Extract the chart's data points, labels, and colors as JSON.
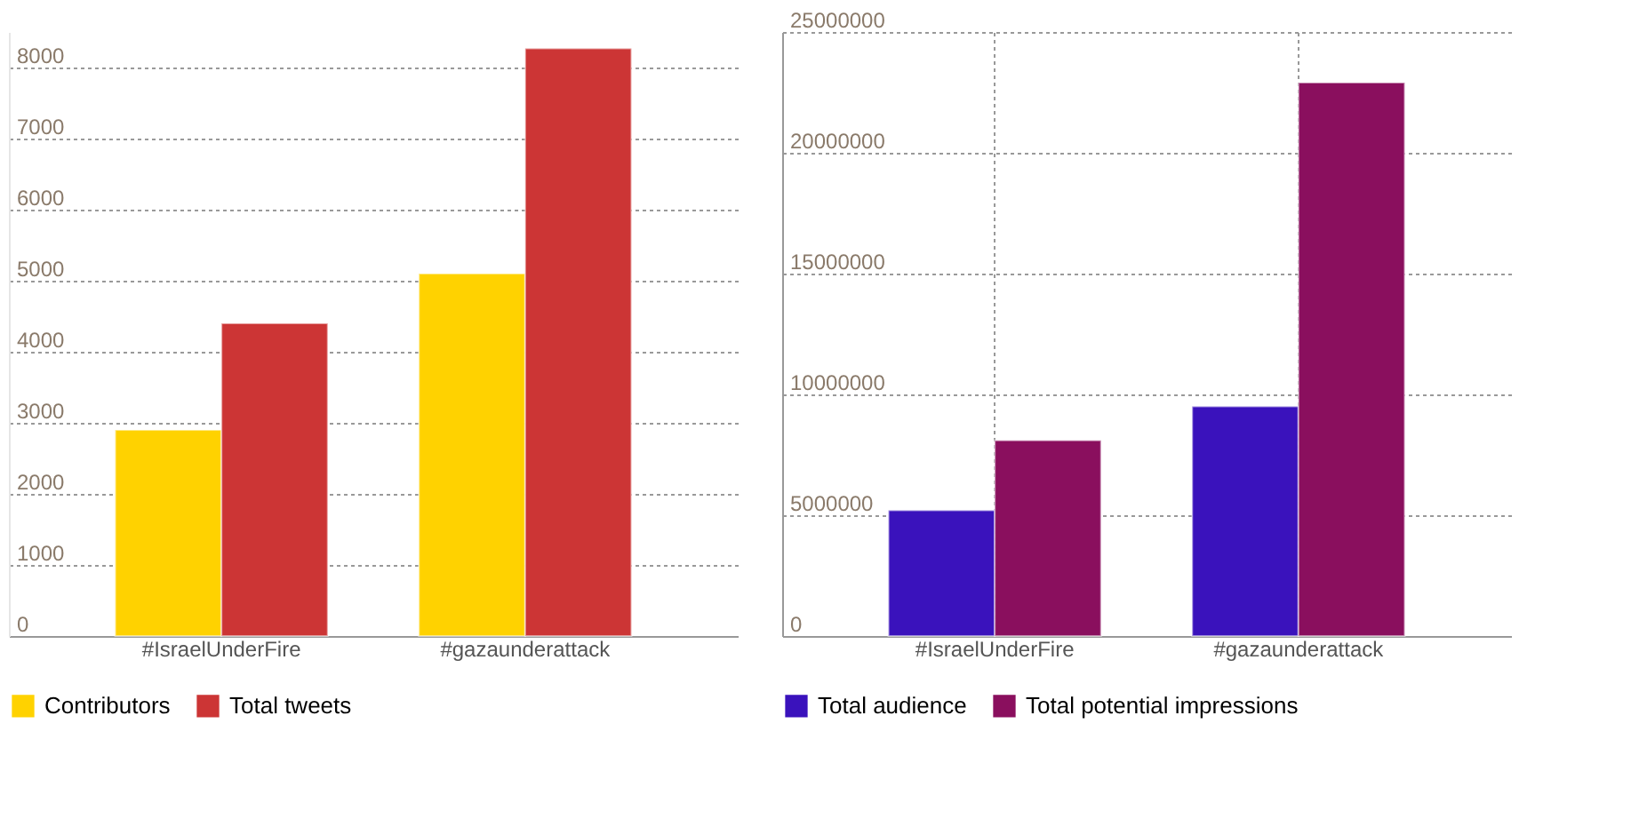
{
  "chart_data": [
    {
      "type": "bar",
      "categories": [
        "#IsraelUnderFire",
        "#gazaunderattack"
      ],
      "series": [
        {
          "name": "Contributors",
          "color": "#ffd200",
          "values": [
            2900,
            5100
          ]
        },
        {
          "name": "Total tweets",
          "color": "#cc3535",
          "values": [
            4400,
            8270
          ]
        }
      ],
      "ylim": [
        0,
        8500
      ],
      "yticks": [
        0,
        1000,
        2000,
        3000,
        4000,
        5000,
        6000,
        7000,
        8000
      ],
      "grid": "y",
      "legend": "bottom"
    },
    {
      "type": "bar",
      "categories": [
        "#IsraelUnderFire",
        "#gazaunderattack"
      ],
      "series": [
        {
          "name": "Total audience",
          "color": "#3a12bc",
          "values": [
            5200000,
            9500000
          ]
        },
        {
          "name": "Total potential impressions",
          "color": "#8a0f5e",
          "values": [
            8100000,
            22900000
          ]
        }
      ],
      "ylim": [
        0,
        25000000
      ],
      "yticks": [
        0,
        5000000,
        10000000,
        15000000,
        20000000,
        25000000
      ],
      "grid": true,
      "legend": "bottom"
    }
  ]
}
